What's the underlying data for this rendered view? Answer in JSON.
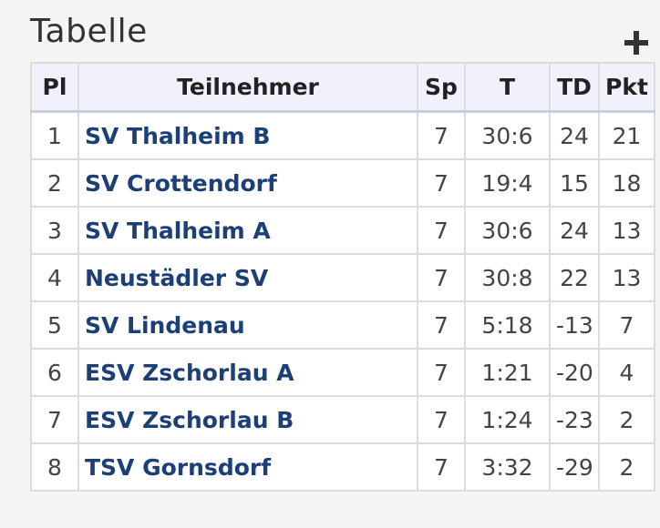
{
  "page": {
    "title": "Tabelle"
  },
  "columns": {
    "pl": "Pl",
    "team": "Teilnehmer",
    "sp": "Sp",
    "t": "T",
    "td": "TD",
    "pkt": "Pkt"
  },
  "rows": [
    {
      "pl": "1",
      "team": "SV Thalheim B",
      "sp": "7",
      "t": "30:6",
      "td": "24",
      "pkt": "21"
    },
    {
      "pl": "2",
      "team": "SV Crottendorf",
      "sp": "7",
      "t": "19:4",
      "td": "15",
      "pkt": "18"
    },
    {
      "pl": "3",
      "team": "SV Thalheim A",
      "sp": "7",
      "t": "30:6",
      "td": "24",
      "pkt": "13"
    },
    {
      "pl": "4",
      "team": "Neustädler SV",
      "sp": "7",
      "t": "30:8",
      "td": "22",
      "pkt": "13"
    },
    {
      "pl": "5",
      "team": "SV Lindenau",
      "sp": "7",
      "t": "5:18",
      "td": "-13",
      "pkt": "7"
    },
    {
      "pl": "6",
      "team": "ESV Zschorlau A",
      "sp": "7",
      "t": "1:21",
      "td": "-20",
      "pkt": "4"
    },
    {
      "pl": "7",
      "team": "ESV Zschorlau B",
      "sp": "7",
      "t": "1:24",
      "td": "-23",
      "pkt": "2"
    },
    {
      "pl": "8",
      "team": "TSV Gornsdorf",
      "sp": "7",
      "t": "3:32",
      "td": "-29",
      "pkt": "2"
    }
  ],
  "icons": {
    "expand": "plus-icon"
  },
  "colors": {
    "team_link": "#1d3f78",
    "header_bg": "#f0f1fb",
    "border": "#dcdcdc"
  }
}
